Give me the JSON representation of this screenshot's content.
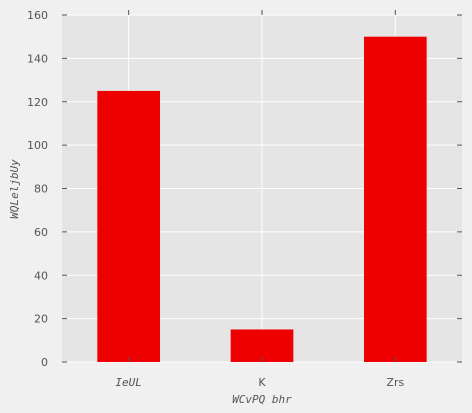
{
  "chart_data": {
    "type": "bar",
    "title": "",
    "xlabel": "WCvPQ bhr",
    "ylabel": "WQLeljbUy",
    "categories": [
      "IeUL",
      "K",
      "Zrs"
    ],
    "values": [
      125,
      15,
      150
    ],
    "ylim": [
      0,
      160
    ],
    "yticks": [
      "0",
      "20",
      "40",
      "60",
      "80",
      "100",
      "120",
      "140",
      "160"
    ],
    "grid": true,
    "legend": "none",
    "bar_color": "#ee0000",
    "plot_background": "#e5e5e5",
    "grid_color": "#ffffff"
  }
}
